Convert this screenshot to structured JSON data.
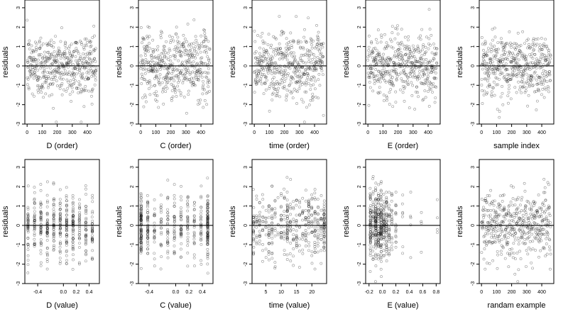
{
  "chart_data": [
    {
      "type": "scatter",
      "xlabel": "D (order)",
      "ylabel": "residuals",
      "xticks": [
        "0",
        "100",
        "200",
        "300",
        "400"
      ],
      "xlim": [
        -15,
        480
      ],
      "yticks": [
        "3",
        "2",
        "1",
        "0",
        "-1",
        "-2",
        "-3"
      ],
      "ylim": [
        -3,
        3.4
      ],
      "refline": 0,
      "n": 460,
      "distribution": "index"
    },
    {
      "type": "scatter",
      "xlabel": "C (order)",
      "ylabel": "residuals",
      "xticks": [
        "0",
        "100",
        "200",
        "300",
        "400"
      ],
      "xlim": [
        -15,
        480
      ],
      "yticks": [
        "3",
        "2",
        "1",
        "0",
        "-1",
        "-2",
        "-3"
      ],
      "ylim": [
        -3,
        3.4
      ],
      "refline": 0,
      "n": 460,
      "distribution": "index"
    },
    {
      "type": "scatter",
      "xlabel": "time (order)",
      "ylabel": "residuals",
      "xticks": [
        "0",
        "100",
        "200",
        "300",
        "400"
      ],
      "xlim": [
        -15,
        480
      ],
      "yticks": [
        "3",
        "2",
        "1",
        "0",
        "-1",
        "-2",
        "-3"
      ],
      "ylim": [
        -3,
        3.4
      ],
      "refline": 0,
      "n": 460,
      "distribution": "index"
    },
    {
      "type": "scatter",
      "xlabel": "E (order)",
      "ylabel": "residuals",
      "xticks": [
        "0",
        "100",
        "200",
        "300",
        "400"
      ],
      "xlim": [
        -15,
        480
      ],
      "yticks": [
        "3",
        "2",
        "1",
        "0",
        "-1",
        "-2",
        "-3"
      ],
      "ylim": [
        -3,
        3.4
      ],
      "refline": 0,
      "n": 460,
      "distribution": "index"
    },
    {
      "type": "scatter",
      "xlabel": "sample index",
      "ylabel": "residuals",
      "xticks": [
        "0",
        "100",
        "200",
        "300",
        "400"
      ],
      "xlim": [
        -15,
        480
      ],
      "yticks": [
        "3",
        "2",
        "1",
        "0",
        "-1",
        "-2",
        "-3"
      ],
      "ylim": [
        -3,
        3.4
      ],
      "refline": 0,
      "n": 460,
      "distribution": "index"
    },
    {
      "type": "scatter",
      "xlabel": "D (value)",
      "ylabel": "residuals",
      "xticks": [
        "-0.4",
        "0.0",
        "0.2",
        "0.4"
      ],
      "xtick_values": [
        -0.4,
        0.0,
        0.2,
        0.4
      ],
      "xlim": [
        -0.6,
        0.56
      ],
      "yticks": [
        "3",
        "2",
        "1",
        "0",
        "-1",
        "-2",
        "-3"
      ],
      "ylim": [
        -3,
        3.4
      ],
      "refline": 0,
      "n": 460,
      "distribution": "columns",
      "x_levels": [
        -0.55,
        -0.45,
        -0.35,
        -0.25,
        -0.15,
        -0.05,
        0.05,
        0.15,
        0.25,
        0.35,
        0.45
      ],
      "x_weights": [
        1,
        1,
        1,
        1,
        1.2,
        1.3,
        1.3,
        1.3,
        1,
        1,
        1
      ]
    },
    {
      "type": "scatter",
      "xlabel": "C (value)",
      "ylabel": "residuals",
      "xticks": [
        "-0.4",
        "0.0",
        "0.2",
        "0.4"
      ],
      "xtick_values": [
        -0.4,
        0.0,
        0.2,
        0.4
      ],
      "xlim": [
        -0.56,
        0.56
      ],
      "yticks": [
        "3",
        "2",
        "1",
        "0",
        "-1",
        "-2",
        "-3"
      ],
      "ylim": [
        -3,
        3.4
      ],
      "refline": 0,
      "n": 460,
      "distribution": "columns",
      "x_levels": [
        -0.52,
        -0.42,
        -0.32,
        -0.22,
        -0.12,
        -0.02,
        0.08,
        0.18,
        0.28,
        0.38,
        0.48
      ],
      "x_weights": [
        3,
        1,
        1,
        1,
        1,
        1,
        1,
        1,
        1,
        1,
        3
      ]
    },
    {
      "type": "scatter",
      "xlabel": "time (value)",
      "ylabel": "residuals",
      "xticks": [
        "5",
        "10",
        "15",
        "20"
      ],
      "xtick_values": [
        5,
        10,
        15,
        20
      ],
      "xlim": [
        0.5,
        24.8
      ],
      "yticks": [
        "3",
        "2",
        "1",
        "0",
        "-1",
        "-2",
        "-3"
      ],
      "ylim": [
        -3,
        3.4
      ],
      "refline": 0,
      "n": 460,
      "distribution": "columns",
      "x_levels": [
        1,
        2,
        3,
        4,
        5,
        6,
        7,
        8,
        9,
        10,
        11,
        12,
        13,
        14,
        15,
        16,
        17,
        18,
        19,
        20,
        21,
        22,
        23,
        24
      ],
      "x_weights": [
        1,
        1,
        1,
        1,
        1,
        1,
        1,
        1,
        1,
        1,
        1,
        2.5,
        1,
        1,
        1,
        1,
        1,
        1,
        1,
        1,
        1,
        1,
        1,
        3
      ]
    },
    {
      "type": "scatter",
      "xlabel": "E (value)",
      "ylabel": "residuals",
      "xticks": [
        "-0.2",
        "0.0",
        "0.2",
        "0.4",
        "0.6",
        "0.8"
      ],
      "xtick_values": [
        -0.2,
        0.0,
        0.2,
        0.4,
        0.6,
        0.8
      ],
      "xlim": [
        -0.25,
        0.86
      ],
      "yticks": [
        "3",
        "2",
        "1",
        "0",
        "-1",
        "-2",
        "-3"
      ],
      "ylim": [
        -3,
        3.4
      ],
      "refline": 0,
      "n": 460,
      "distribution": "columns",
      "x_levels": [
        -0.18,
        -0.14,
        -0.1,
        -0.06,
        -0.02,
        0.02,
        0.06,
        0.1,
        0.14,
        0.2,
        0.3,
        0.42,
        0.58,
        0.82
      ],
      "x_weights": [
        3,
        2,
        3,
        2,
        3,
        2,
        1.5,
        1.2,
        1,
        0.6,
        0.3,
        0.15,
        0.1,
        0.1
      ]
    },
    {
      "type": "scatter",
      "xlabel": "randam example",
      "ylabel": "residuals",
      "xticks": [
        "0",
        "100",
        "200",
        "300",
        "400"
      ],
      "xlim": [
        -15,
        480
      ],
      "yticks": [
        "3",
        "2",
        "1",
        "0",
        "-1",
        "-2",
        "-3"
      ],
      "ylim": [
        -3,
        3.4
      ],
      "refline": 0,
      "n": 460,
      "distribution": "index"
    }
  ]
}
